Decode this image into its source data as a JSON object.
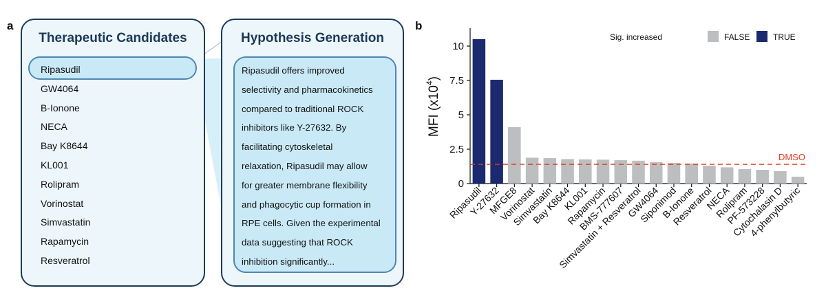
{
  "panels": {
    "a": "a",
    "b": "b"
  },
  "candidates": {
    "title": "Therapeutic Candidates",
    "items": [
      "Ripasudil",
      "GW4064",
      "B-Ionone",
      "NECA",
      "Bay K8644",
      "KL001",
      "Rolipram",
      "Vorinostat",
      "Simvastatin",
      "Rapamycin",
      "Resveratrol"
    ],
    "selected_index": 0
  },
  "hypothesis": {
    "title": "Hypothesis Generation",
    "lines": [
      "Ripasudil offers improved",
      "selectivity and pharmacokinetics",
      "compared to traditional ROCK",
      "inhibitors like Y-27632. By",
      "facilitating cytoskeletal",
      "relaxation, Ripasudil may allow",
      "for greater membrane flexibility",
      "and phagocytic cup formation in",
      "RPE cells. Given the experimental",
      "data suggesting that ROCK",
      "inhibition significantly..."
    ]
  },
  "chart_data": {
    "type": "bar",
    "ylabel": "MFI (x10",
    "ylabel_sup": "4",
    "ylabel_close": ")",
    "ylim": [
      0,
      11.2
    ],
    "yticks": [
      0,
      2.5,
      5,
      7.5,
      10
    ],
    "ytick_labels": [
      "0",
      "2.5",
      "5",
      "7.5",
      "10"
    ],
    "categories": [
      "Ripasudil",
      "Y-27632",
      "MFGE8",
      "Vorinostat",
      "Simvastatin",
      "Bay K8644",
      "KL001",
      "Rapamycin",
      "BMS-777607",
      "Simvastatin + Resveratrol",
      "GW4064",
      "Siponimod",
      "B-Ionone",
      "Resveratrol",
      "NECA",
      "Rolipram",
      "PF-573228",
      "Cytochalasin D",
      "4-phenylbutyric"
    ],
    "values": [
      10.5,
      7.55,
      4.1,
      1.88,
      1.85,
      1.78,
      1.76,
      1.74,
      1.7,
      1.66,
      1.55,
      1.5,
      1.46,
      1.3,
      1.18,
      1.05,
      1.0,
      0.9,
      0.5
    ],
    "significant": [
      true,
      true,
      false,
      false,
      false,
      false,
      false,
      false,
      false,
      false,
      false,
      false,
      false,
      false,
      false,
      false,
      false,
      false,
      false
    ],
    "reference_line": {
      "label": "DMSO",
      "value": 1.4,
      "color": "#e03a24"
    },
    "legend": {
      "title": "Sig. increased",
      "entries": [
        {
          "label": "FALSE",
          "color": "#bcbec0"
        },
        {
          "label": "TRUE",
          "color": "#1b2a6e"
        }
      ],
      "position": "top-right"
    }
  }
}
